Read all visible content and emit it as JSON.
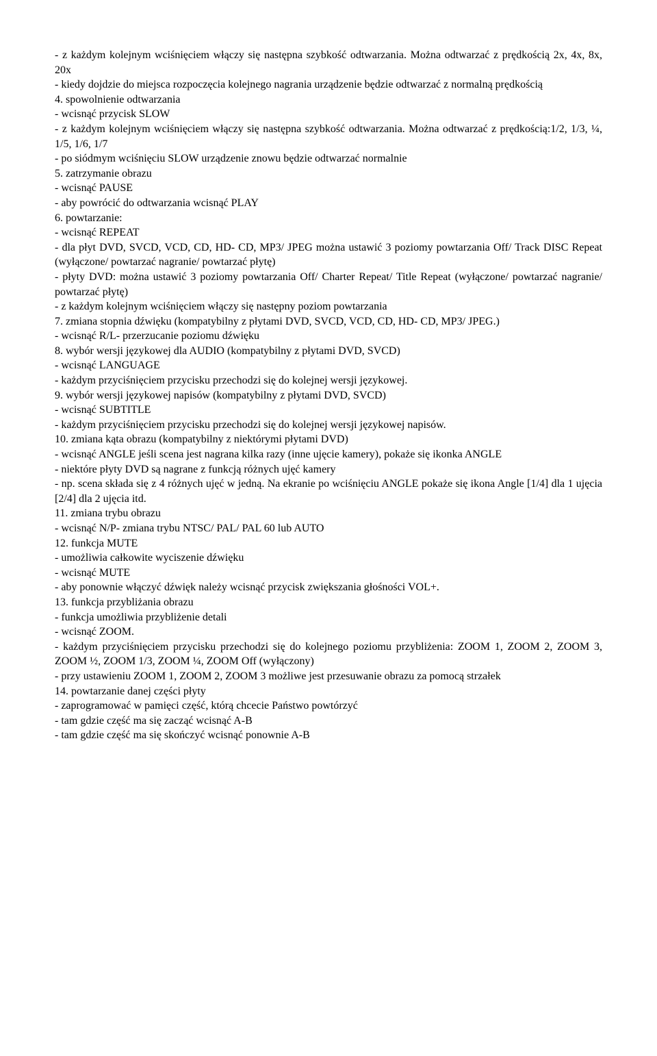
{
  "colors": {
    "text": "#000000",
    "background": "#ffffff"
  },
  "typography": {
    "font_family": "Times New Roman",
    "font_size": 16,
    "line_height": 1.35,
    "text_align": "justify"
  },
  "lines": [
    "- z każdym kolejnym wciśnięciem włączy się następna szybkość odtwarzania. Można odtwarzać z prędkością 2x, 4x, 8x, 20x",
    "- kiedy dojdzie do miejsca rozpoczęcia kolejnego nagrania urządzenie będzie odtwarzać z normalną prędkością",
    "4. spowolnienie odtwarzania",
    "- wcisnąć przycisk SLOW",
    "- z każdym kolejnym wciśnięciem włączy się następna szybkość odtwarzania. Można odtwarzać z prędkością:1/2, 1/3, ¼, 1/5, 1/6, 1/7",
    "- po siódmym wciśnięciu SLOW urządzenie znowu będzie odtwarzać normalnie",
    "5. zatrzymanie obrazu",
    "- wcisnąć PAUSE",
    "- aby powrócić do odtwarzania wcisnąć PLAY",
    "6. powtarzanie:",
    "- wcisnąć REPEAT",
    "-  dla płyt DVD, SVCD, VCD, CD, HD- CD, MP3/ JPEG można ustawić 3 poziomy powtarzania Off/ Track  DISC Repeat (wyłączone/ powtarzać nagranie/ powtarzać płytę)",
    "- płyty DVD: można ustawić 3 poziomy powtarzania Off/ Charter Repeat/ Title Repeat (wyłączone/ powtarzać nagranie/ powtarzać płytę)",
    "- z każdym kolejnym wciśnięciem włączy się następny poziom powtarzania",
    "7. zmiana stopnia dźwięku (kompatybilny z płytami DVD, SVCD, VCD, CD, HD- CD, MP3/ JPEG.)",
    "- wcisnąć R/L- przerzucanie poziomu dźwięku",
    "8. wybór wersji językowej dla AUDIO (kompatybilny z płytami DVD, SVCD)",
    "- wcisnąć LANGUAGE",
    "- każdym przyciśnięciem przycisku przechodzi się do kolejnej wersji językowej.",
    "9. wybór wersji językowej napisów (kompatybilny z płytami DVD, SVCD)",
    "- wcisnąć SUBTITLE",
    "- każdym przyciśnięciem przycisku przechodzi się do kolejnej wersji językowej napisów.",
    "10. zmiana kąta obrazu (kompatybilny z niektórymi płytami DVD)",
    "- wcisnąć ANGLE jeśli scena jest nagrana kilka razy (inne ujęcie kamery), pokaże się ikonka ANGLE",
    "- niektóre płyty DVD są nagrane z funkcją różnych ujęć kamery",
    "- np. scena składa się z 4 różnych ujęć w jedną. Na ekranie po wciśnięciu ANGLE pokaże się ikona Angle [1/4] dla 1 ujęcia [2/4] dla 2 ujęcia itd.",
    "11. zmiana trybu obrazu",
    "- wcisnąć N/P- zmiana trybu NTSC/ PAL/ PAL 60 lub AUTO",
    "12. funkcja MUTE",
    "- umożliwia całkowite wyciszenie dźwięku",
    "- wcisnąć MUTE",
    "- aby ponownie włączyć dźwięk należy wcisnąć przycisk zwiększania głośności VOL+.",
    "13. funkcja przybliżania obrazu",
    "- funkcja umożliwia przybliżenie detali",
    "- wcisnąć ZOOM.",
    "-  każdym przyciśnięciem przycisku przechodzi się do kolejnego poziomu przybliżenia: ZOOM 1, ZOOM 2, ZOOM 3, ZOOM ½, ZOOM 1/3, ZOOM ¼, ZOOM Off (wyłączony)",
    "- przy ustawieniu ZOOM 1, ZOOM 2, ZOOM 3 możliwe jest przesuwanie obrazu za pomocą strzałek",
    "14. powtarzanie danej części płyty",
    "- zaprogramować w pamięci część, którą chcecie Państwo powtórzyć",
    "- tam gdzie część ma się zacząć wcisnąć A-B",
    "- tam gdzie część ma się skończyć wcisnąć ponownie A-B"
  ]
}
